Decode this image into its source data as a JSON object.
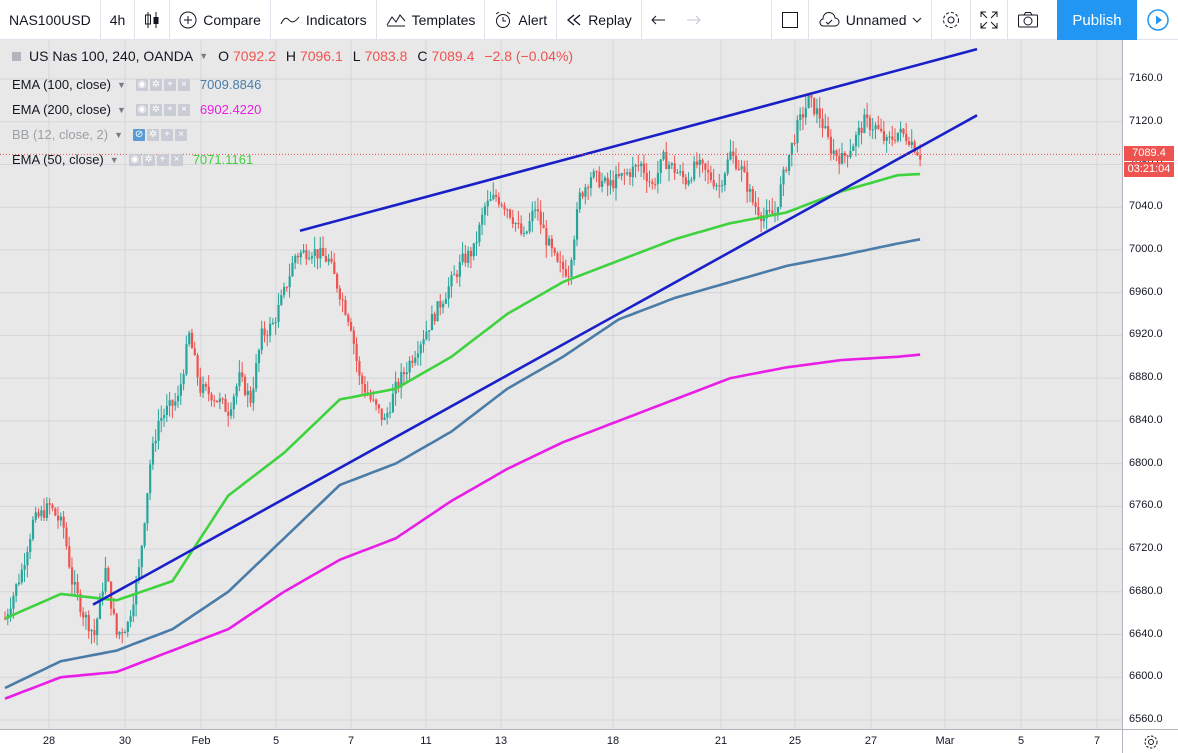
{
  "toolbar": {
    "symbol": "NAS100USD",
    "interval": "4h",
    "compare": "Compare",
    "indicators": "Indicators",
    "templates": "Templates",
    "alert": "Alert",
    "replay": "Replay",
    "layout_name": "Unnamed",
    "publish": "Publish"
  },
  "legend": {
    "title": "US Nas 100, 240, OANDA",
    "open_k": "O",
    "open": "7092.2",
    "high_k": "H",
    "high": "7096.1",
    "low_k": "L",
    "low": "7083.8",
    "close_k": "C",
    "close": "7089.4",
    "change": "−2.8 (−0.04%)",
    "studies": [
      {
        "label": "EMA (100, close)",
        "value": "7009.8846",
        "color": "#4a7ca8"
      },
      {
        "label": "EMA (200, close)",
        "value": "6902.4220",
        "color": "#e91ee6"
      },
      {
        "label": "BB (12, close, 2)",
        "value": "",
        "color": "#9aa0a6"
      },
      {
        "label": "EMA (50, close)",
        "value": "7071.1161",
        "color": "#3fd23f"
      }
    ]
  },
  "price_tag": {
    "price": "7089.4",
    "countdown": "03:21:04",
    "color": "#ef5350"
  },
  "colors": {
    "up": "#26a69a",
    "down": "#ef5350",
    "ema50": "#3fd23f",
    "ema100": "#4a7ca8",
    "ema200": "#e91ee6",
    "trendline": "#1a20c8"
  },
  "chart_data": {
    "type": "candlestick",
    "symbol": "US Nas 100, 240, OANDA",
    "x_ticks": [
      "28",
      "30",
      "Feb",
      "5",
      "7",
      "11",
      "13",
      "18",
      "21",
      "25",
      "27",
      "Mar",
      "5",
      "7"
    ],
    "y_ticks": [
      6560,
      6600,
      6640,
      6680,
      6720,
      6760,
      6800,
      6840,
      6880,
      6920,
      6960,
      7000,
      7040,
      7080,
      7120,
      7160
    ],
    "ylim": [
      6555,
      7195
    ],
    "bars": 176,
    "close_path": [
      [
        0,
        6655
      ],
      [
        6,
        6700
      ],
      [
        10,
        6745
      ],
      [
        16,
        6760
      ],
      [
        21,
        6740
      ],
      [
        24,
        6690
      ],
      [
        28,
        6660
      ],
      [
        32,
        6640
      ],
      [
        36,
        6700
      ],
      [
        40,
        6640
      ],
      [
        44,
        6650
      ],
      [
        48,
        6700
      ],
      [
        52,
        6800
      ],
      [
        55,
        6840
      ],
      [
        58,
        6850
      ],
      [
        62,
        6860
      ],
      [
        66,
        6920
      ],
      [
        70,
        6870
      ],
      [
        74,
        6865
      ],
      [
        80,
        6850
      ],
      [
        84,
        6880
      ],
      [
        88,
        6860
      ],
      [
        92,
        6920
      ],
      [
        96,
        6930
      ],
      [
        100,
        6960
      ],
      [
        104,
        6995
      ],
      [
        110,
        7000
      ],
      [
        116,
        6990
      ],
      [
        120,
        6960
      ],
      [
        124,
        6930
      ],
      [
        127,
        6880
      ],
      [
        131,
        6860
      ],
      [
        136,
        6840
      ],
      [
        140,
        6870
      ],
      [
        144,
        6890
      ],
      [
        148,
        6910
      ],
      [
        152,
        6930
      ],
      [
        156,
        6950
      ],
      [
        160,
        6970
      ],
      [
        164,
        6990
      ],
      [
        168,
        7000
      ],
      [
        172,
        7040
      ],
      [
        176,
        7050
      ],
      [
        180,
        7040
      ],
      [
        186,
        7010
      ],
      [
        190,
        7040
      ],
      [
        194,
        7010
      ],
      [
        198,
        6985
      ],
      [
        202,
        6980
      ],
      [
        206,
        7050
      ],
      [
        210,
        7070
      ],
      [
        216,
        7060
      ],
      [
        222,
        7070
      ],
      [
        228,
        7080
      ],
      [
        232,
        7060
      ],
      [
        236,
        7085
      ],
      [
        240,
        7075
      ],
      [
        244,
        7065
      ],
      [
        248,
        7080
      ],
      [
        252,
        7070
      ],
      [
        256,
        7060
      ],
      [
        260,
        7090
      ],
      [
        264,
        7075
      ],
      [
        268,
        7045
      ],
      [
        272,
        7030
      ],
      [
        276,
        7035
      ],
      [
        280,
        7080
      ],
      [
        284,
        7115
      ],
      [
        288,
        7140
      ],
      [
        292,
        7125
      ],
      [
        296,
        7095
      ],
      [
        300,
        7085
      ],
      [
        304,
        7100
      ],
      [
        308,
        7120
      ],
      [
        312,
        7115
      ],
      [
        316,
        7100
      ],
      [
        320,
        7110
      ],
      [
        324,
        7105
      ],
      [
        328,
        7089
      ]
    ],
    "ema50": [
      [
        0,
        6655
      ],
      [
        20,
        6678
      ],
      [
        40,
        6672
      ],
      [
        60,
        6690
      ],
      [
        80,
        6770
      ],
      [
        100,
        6810
      ],
      [
        120,
        6860
      ],
      [
        140,
        6870
      ],
      [
        160,
        6900
      ],
      [
        180,
        6940
      ],
      [
        200,
        6970
      ],
      [
        220,
        6990
      ],
      [
        240,
        7010
      ],
      [
        260,
        7025
      ],
      [
        280,
        7035
      ],
      [
        300,
        7055
      ],
      [
        320,
        7070
      ],
      [
        328,
        7071
      ]
    ],
    "ema100": [
      [
        0,
        6590
      ],
      [
        20,
        6615
      ],
      [
        40,
        6625
      ],
      [
        60,
        6645
      ],
      [
        80,
        6680
      ],
      [
        100,
        6730
      ],
      [
        120,
        6780
      ],
      [
        140,
        6800
      ],
      [
        160,
        6830
      ],
      [
        180,
        6870
      ],
      [
        200,
        6900
      ],
      [
        220,
        6935
      ],
      [
        240,
        6955
      ],
      [
        260,
        6970
      ],
      [
        280,
        6985
      ],
      [
        300,
        6995
      ],
      [
        320,
        7006
      ],
      [
        328,
        7010
      ]
    ],
    "ema200": [
      [
        0,
        6580
      ],
      [
        20,
        6600
      ],
      [
        40,
        6605
      ],
      [
        60,
        6625
      ],
      [
        80,
        6645
      ],
      [
        100,
        6680
      ],
      [
        120,
        6710
      ],
      [
        140,
        6730
      ],
      [
        160,
        6765
      ],
      [
        180,
        6795
      ],
      [
        200,
        6820
      ],
      [
        220,
        6840
      ],
      [
        240,
        6860
      ],
      [
        260,
        6880
      ],
      [
        280,
        6890
      ],
      [
        300,
        6897
      ],
      [
        320,
        6900
      ],
      [
        328,
        6902
      ]
    ],
    "trendlines": [
      {
        "from": [
          90,
          6668
        ],
        "to": [
          338,
          7128
        ]
      },
      {
        "from": [
          298,
          7020
        ],
        "to": [
          975,
          7185
        ]
      }
    ]
  }
}
